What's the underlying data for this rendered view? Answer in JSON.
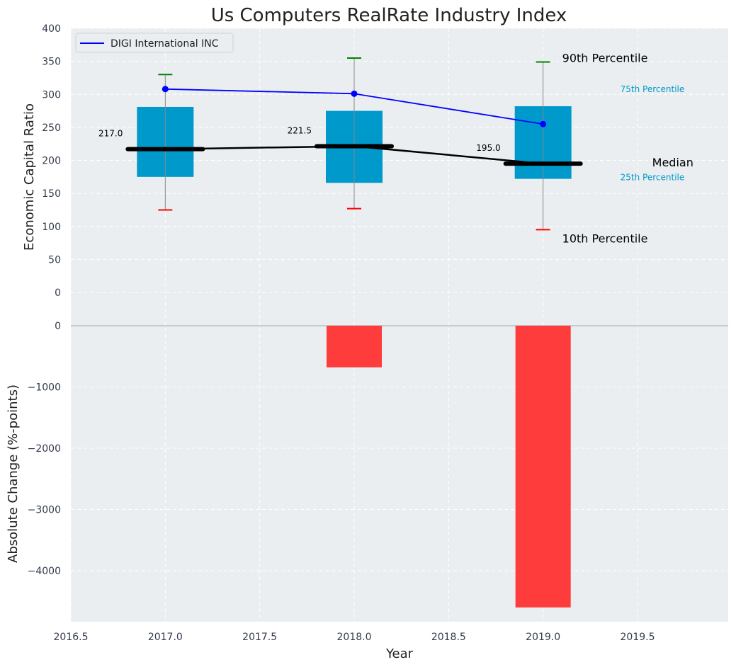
{
  "chart_data": [
    {
      "type": "box",
      "title": "Us Computers RealRate Industry Index",
      "ylabel": "Economic Capital Ratio",
      "ylim": [
        0,
        400
      ],
      "yticks": [
        0,
        50,
        100,
        150,
        200,
        250,
        300,
        350,
        400
      ],
      "grid": true,
      "legend": {
        "placement": "top-left",
        "entries": [
          "DIGI International INC"
        ]
      },
      "categories": [
        2017.0,
        2018.0,
        2019.0
      ],
      "boxes": [
        {
          "x": 2017.0,
          "p10": 125,
          "p25": 175,
          "median": 217.0,
          "p75": 281,
          "p90": 330
        },
        {
          "x": 2018.0,
          "p10": 127,
          "p25": 166,
          "median": 221.5,
          "p75": 275,
          "p90": 355
        },
        {
          "x": 2019.0,
          "p10": 95,
          "p25": 172,
          "median": 195.0,
          "p75": 282,
          "p90": 349
        }
      ],
      "median_labels": [
        "217.0",
        "221.5",
        "195.0"
      ],
      "series": [
        {
          "name": "DIGI International INC",
          "x": [
            2017.0,
            2018.0,
            2019.0
          ],
          "values": [
            308,
            301,
            255
          ]
        }
      ],
      "annotations": {
        "p90": "90th Percentile",
        "p75": "75th Percentile",
        "median": "Median",
        "p25": "25th Percentile",
        "p10": "10th Percentile"
      }
    },
    {
      "type": "bar",
      "xlabel": "Year",
      "ylabel": "Absolute Change (%-points)",
      "ylim": [
        -4800,
        0
      ],
      "yticks": [
        0,
        -1000,
        -2000,
        -3000,
        -4000
      ],
      "ytick_labels": [
        "0",
        "−1000",
        "−2000",
        "−3000",
        "−4000"
      ],
      "xlim": [
        2016.5,
        2019.98
      ],
      "xticks": [
        2016.5,
        2017.0,
        2017.5,
        2018.0,
        2018.5,
        2019.0,
        2019.5
      ],
      "xtick_labels": [
        "2016.5",
        "2017.0",
        "2017.5",
        "2018.0",
        "2018.5",
        "2019.0",
        "2019.5"
      ],
      "grid": true,
      "x": [
        2017.0,
        2018.0,
        2019.0
      ],
      "values": [
        0,
        -680,
        -4600
      ]
    }
  ],
  "colors": {
    "background": "#eaeef0",
    "grid": "#ffffff",
    "box": "#0099cc",
    "median": "#000000",
    "series": "#0000ff",
    "p90_cap": "#008000",
    "p10_cap": "#ff0000",
    "bar": "#ff3c3c",
    "whisker": "#888888"
  }
}
